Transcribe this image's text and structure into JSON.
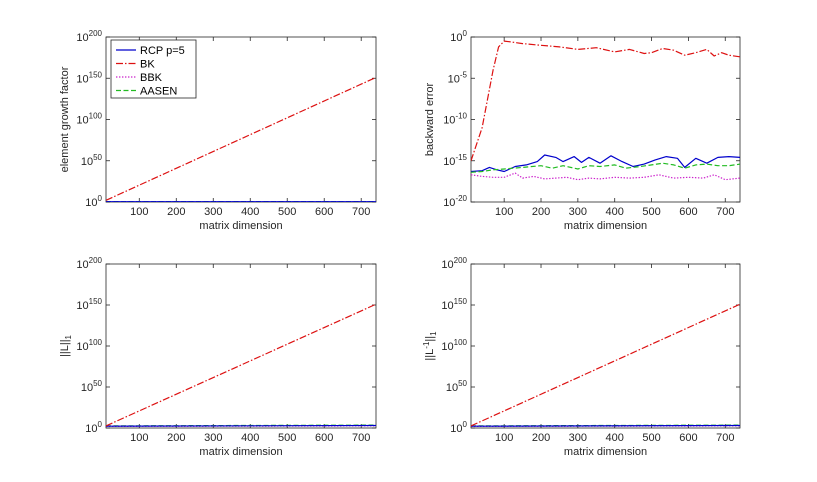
{
  "chart_data": [
    {
      "type": "line",
      "xlabel": "matrix dimension",
      "ylabel": "element growth factor",
      "yscale": "log",
      "xlim": [
        10,
        740
      ],
      "ylim": [
        1,
        1e+200
      ],
      "x_ticks": [
        100,
        200,
        300,
        400,
        500,
        600,
        700
      ],
      "y_ticks": [
        {
          "base": "10",
          "exp": "0",
          "value": 1
        },
        {
          "base": "10",
          "exp": "50",
          "value": 1e+50
        },
        {
          "base": "10",
          "exp": "100",
          "value": 1e+100
        },
        {
          "base": "10",
          "exp": "150",
          "value": 1e+150
        },
        {
          "base": "10",
          "exp": "200",
          "value": 1e+200
        }
      ],
      "legend": {
        "placement": "top-left",
        "entries": [
          {
            "label": "RCP p=5",
            "color": "#0000cc",
            "style": "solid"
          },
          {
            "label": "BK",
            "color": "#dd1111",
            "style": "dashdot"
          },
          {
            "label": "BBK",
            "color": "#cc22cc",
            "style": "dotted"
          },
          {
            "label": "AASEN",
            "color": "#22bb22",
            "style": "dashed"
          }
        ]
      },
      "series": [
        {
          "name": "AASEN",
          "color": "#22bb22",
          "style": "dashed",
          "log10": [
            [
              10,
              0.5
            ],
            [
              740,
              0.5
            ]
          ]
        },
        {
          "name": "BBK",
          "color": "#cc22cc",
          "style": "dotted",
          "log10": [
            [
              10,
              0.3
            ],
            [
              740,
              0.3
            ]
          ]
        },
        {
          "name": "RCP p=5",
          "color": "#0000cc",
          "style": "solid",
          "log10": [
            [
              10,
              0.4
            ],
            [
              740,
              0.4
            ]
          ]
        },
        {
          "name": "BK",
          "color": "#dd1111",
          "style": "dashdot",
          "log10": [
            [
              10,
              2
            ],
            [
              740,
              151
            ]
          ]
        }
      ]
    },
    {
      "type": "line",
      "xlabel": "matrix dimension",
      "ylabel": "backward error",
      "yscale": "log",
      "xlim": [
        10,
        740
      ],
      "ylim": [
        1e-20,
        1
      ],
      "x_ticks": [
        100,
        200,
        300,
        400,
        500,
        600,
        700
      ],
      "y_ticks": [
        {
          "base": "10",
          "exp": "-20",
          "value": 1e-20
        },
        {
          "base": "10",
          "exp": "-15",
          "value": 1e-15
        },
        {
          "base": "10",
          "exp": "-10",
          "value": 1e-10
        },
        {
          "base": "10",
          "exp": "-5",
          "value": 1e-05
        },
        {
          "base": "10",
          "exp": "0",
          "value": 1
        }
      ],
      "series": [
        {
          "name": "BK",
          "color": "#dd1111",
          "style": "dashdot",
          "log10": [
            [
              10,
              -15
            ],
            [
              40,
              -11
            ],
            [
              70,
              -4
            ],
            [
              85,
              -1.2
            ],
            [
              100,
              -0.5
            ],
            [
              120,
              -0.6
            ],
            [
              150,
              -0.8
            ],
            [
              200,
              -1
            ],
            [
              250,
              -1.2
            ],
            [
              300,
              -1.5
            ],
            [
              350,
              -1.3
            ],
            [
              400,
              -1.8
            ],
            [
              440,
              -1.5
            ],
            [
              480,
              -2
            ],
            [
              500,
              -1.9
            ],
            [
              530,
              -1.4
            ],
            [
              560,
              -1.6
            ],
            [
              590,
              -2.2
            ],
            [
              620,
              -1.9
            ],
            [
              650,
              -1.5
            ],
            [
              670,
              -2.3
            ],
            [
              690,
              -1.9
            ],
            [
              710,
              -2.2
            ],
            [
              740,
              -2.4
            ]
          ]
        },
        {
          "name": "RCP p=5",
          "color": "#0000cc",
          "style": "solid",
          "log10": [
            [
              10,
              -16.3
            ],
            [
              40,
              -16.2
            ],
            [
              60,
              -15.8
            ],
            [
              80,
              -16.1
            ],
            [
              100,
              -16.3
            ],
            [
              130,
              -15.7
            ],
            [
              160,
              -15.5
            ],
            [
              190,
              -15.1
            ],
            [
              210,
              -14.3
            ],
            [
              240,
              -14.6
            ],
            [
              260,
              -15.1
            ],
            [
              290,
              -14.5
            ],
            [
              310,
              -15.2
            ],
            [
              330,
              -14.6
            ],
            [
              360,
              -15.3
            ],
            [
              390,
              -14.4
            ],
            [
              420,
              -15.1
            ],
            [
              450,
              -15.7
            ],
            [
              480,
              -15.4
            ],
            [
              510,
              -14.9
            ],
            [
              540,
              -14.5
            ],
            [
              570,
              -14.7
            ],
            [
              590,
              -15.8
            ],
            [
              620,
              -14.7
            ],
            [
              650,
              -15.3
            ],
            [
              680,
              -14.6
            ],
            [
              710,
              -14.5
            ],
            [
              740,
              -14.6
            ]
          ]
        },
        {
          "name": "AASEN",
          "color": "#22bb22",
          "style": "dashed",
          "log10": [
            [
              10,
              -16.4
            ],
            [
              40,
              -16.3
            ],
            [
              70,
              -16.1
            ],
            [
              100,
              -16.0
            ],
            [
              150,
              -15.8
            ],
            [
              200,
              -15.6
            ],
            [
              230,
              -15.9
            ],
            [
              260,
              -15.6
            ],
            [
              300,
              -16.0
            ],
            [
              330,
              -15.6
            ],
            [
              360,
              -15.7
            ],
            [
              400,
              -15.5
            ],
            [
              430,
              -15.9
            ],
            [
              470,
              -15.7
            ],
            [
              500,
              -15.5
            ],
            [
              530,
              -15.3
            ],
            [
              560,
              -15.5
            ],
            [
              590,
              -15.9
            ],
            [
              620,
              -15.5
            ],
            [
              650,
              -15.4
            ],
            [
              680,
              -15.6
            ],
            [
              710,
              -15.6
            ],
            [
              740,
              -15.4
            ]
          ]
        },
        {
          "name": "BBK",
          "color": "#cc22cc",
          "style": "dotted",
          "log10": [
            [
              10,
              -16.7
            ],
            [
              40,
              -16.9
            ],
            [
              70,
              -17.0
            ],
            [
              100,
              -17.0
            ],
            [
              130,
              -16.5
            ],
            [
              150,
              -17.1
            ],
            [
              180,
              -16.9
            ],
            [
              210,
              -17.2
            ],
            [
              240,
              -17.1
            ],
            [
              270,
              -17.0
            ],
            [
              300,
              -17.3
            ],
            [
              330,
              -17.1
            ],
            [
              360,
              -17.2
            ],
            [
              400,
              -17.0
            ],
            [
              440,
              -17.1
            ],
            [
              480,
              -17.0
            ],
            [
              520,
              -16.7
            ],
            [
              560,
              -17.1
            ],
            [
              600,
              -17.0
            ],
            [
              640,
              -17.1
            ],
            [
              670,
              -16.7
            ],
            [
              700,
              -17.3
            ],
            [
              740,
              -17.1
            ]
          ]
        }
      ]
    },
    {
      "type": "line",
      "xlabel": "matrix dimension",
      "ylabel_main": "||L||",
      "ylabel_sub": "1",
      "yscale": "log",
      "xlim": [
        10,
        740
      ],
      "ylim": [
        1,
        1e+200
      ],
      "x_ticks": [
        100,
        200,
        300,
        400,
        500,
        600,
        700
      ],
      "y_ticks": [
        {
          "base": "10",
          "exp": "0",
          "value": 1
        },
        {
          "base": "10",
          "exp": "50",
          "value": 1e+50
        },
        {
          "base": "10",
          "exp": "100",
          "value": 1e+100
        },
        {
          "base": "10",
          "exp": "150",
          "value": 1e+150
        },
        {
          "base": "10",
          "exp": "200",
          "value": 1e+200
        }
      ],
      "series": [
        {
          "name": "AASEN",
          "color": "#22bb22",
          "style": "dashed",
          "log10": [
            [
              10,
              2.5
            ],
            [
              740,
              3.5
            ]
          ]
        },
        {
          "name": "BBK",
          "color": "#cc22cc",
          "style": "dotted",
          "log10": [
            [
              10,
              2
            ],
            [
              740,
              2.5
            ]
          ]
        },
        {
          "name": "RCP p=5",
          "color": "#0000cc",
          "style": "solid",
          "log10": [
            [
              10,
              2.2
            ],
            [
              740,
              3
            ]
          ]
        },
        {
          "name": "BK",
          "color": "#dd1111",
          "style": "dashdot",
          "log10": [
            [
              10,
              2.5
            ],
            [
              740,
              151
            ]
          ]
        }
      ]
    },
    {
      "type": "line",
      "xlabel": "matrix dimension",
      "ylabel_main": "||L",
      "ylabel_sup": "-1",
      "ylabel_main2": "||",
      "ylabel_sub": "1",
      "yscale": "log",
      "xlim": [
        10,
        740
      ],
      "ylim": [
        1,
        1e+200
      ],
      "x_ticks": [
        100,
        200,
        300,
        400,
        500,
        600,
        700
      ],
      "y_ticks": [
        {
          "base": "10",
          "exp": "0",
          "value": 1
        },
        {
          "base": "10",
          "exp": "50",
          "value": 1e+50
        },
        {
          "base": "10",
          "exp": "100",
          "value": 1e+100
        },
        {
          "base": "10",
          "exp": "150",
          "value": 1e+150
        },
        {
          "base": "10",
          "exp": "200",
          "value": 1e+200
        }
      ],
      "series": [
        {
          "name": "AASEN",
          "color": "#22bb22",
          "style": "dashed",
          "log10": [
            [
              10,
              2.5
            ],
            [
              740,
              3.5
            ]
          ]
        },
        {
          "name": "BBK",
          "color": "#cc22cc",
          "style": "dotted",
          "log10": [
            [
              10,
              2
            ],
            [
              740,
              2.5
            ]
          ]
        },
        {
          "name": "RCP p=5",
          "color": "#0000cc",
          "style": "solid",
          "log10": [
            [
              10,
              2.2
            ],
            [
              740,
              3
            ]
          ]
        },
        {
          "name": "BK",
          "color": "#dd1111",
          "style": "dashdot",
          "log10": [
            [
              10,
              2.5
            ],
            [
              740,
              151
            ]
          ]
        }
      ]
    }
  ]
}
